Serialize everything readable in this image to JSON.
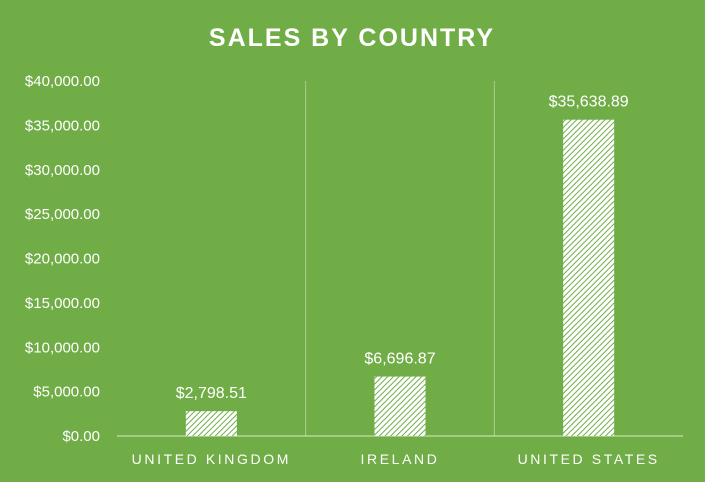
{
  "chart_data": {
    "type": "bar",
    "title": "SALES BY COUNTRY",
    "categories": [
      "UNITED KINGDOM",
      "IRELAND",
      "UNITED STATES"
    ],
    "values": [
      2798.51,
      6696.87,
      35638.89
    ],
    "data_labels": [
      "$2,798.51",
      "$6,696.87",
      "$35,638.89"
    ],
    "ylim": [
      0,
      40000
    ],
    "y_ticks": [
      0,
      5000,
      10000,
      15000,
      20000,
      25000,
      30000,
      35000,
      40000
    ],
    "y_tick_labels": [
      "$0.00",
      "$5,000.00",
      "$10,000.00",
      "$15,000.00",
      "$20,000.00",
      "$25,000.00",
      "$30,000.00",
      "$35,000.00",
      "$40,000.00"
    ],
    "xlabel": "",
    "ylabel": "",
    "grid": "vertical category separators",
    "legend": "none",
    "colors": {
      "background": "#70AD47",
      "text": "#FFFFFF",
      "bar_fill": "#FFFFFF",
      "bar_pattern_line": "#70AD47",
      "grid_line": "#A9D08E",
      "axis_line": "#D9EBCB"
    }
  }
}
